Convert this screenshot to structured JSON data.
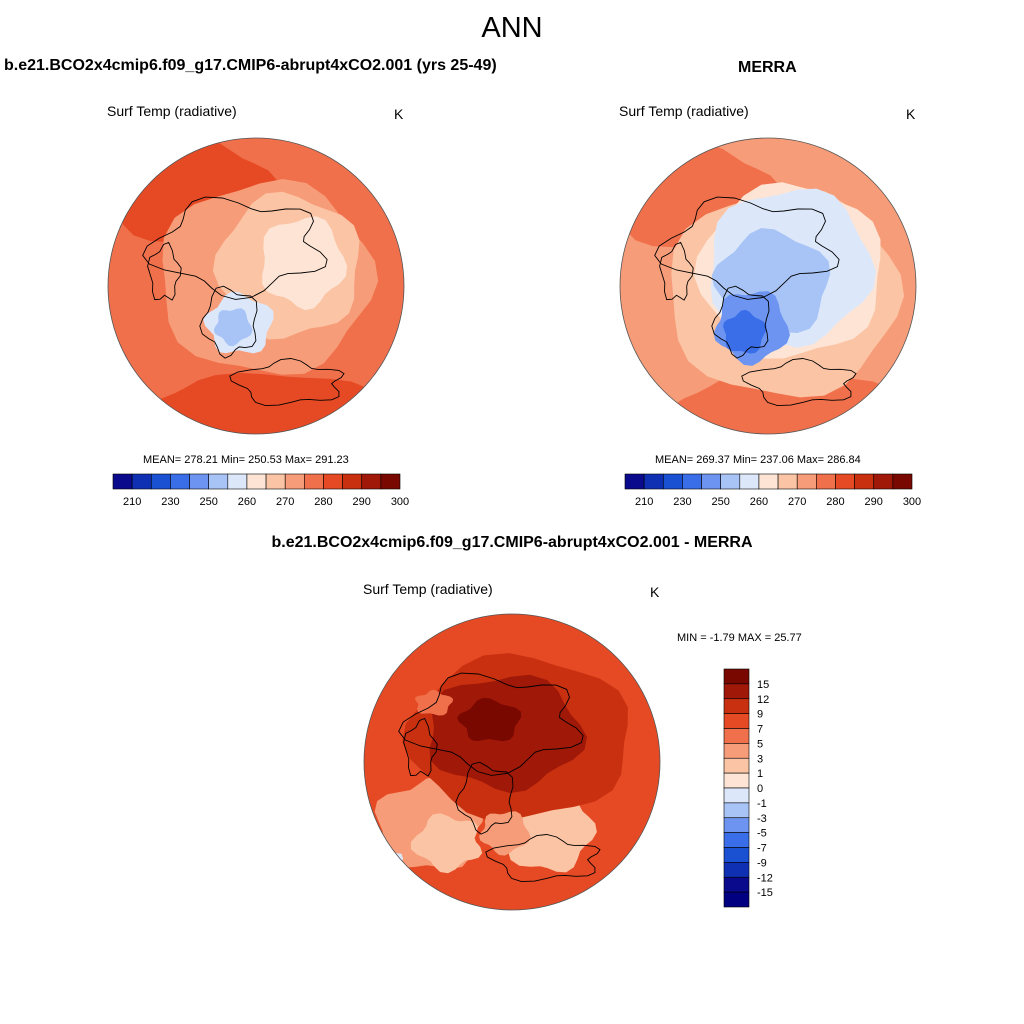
{
  "figure": {
    "main_title": "ANN",
    "panel_titles": {
      "model": "b.e21.BCO2x4cmip6.f09_g17.CMIP6-abrupt4xCO2.001 (yrs 25-49)",
      "obs": "MERRA",
      "diff": "b.e21.BCO2x4cmip6.f09_g17.CMIP6-abrupt4xCO2.001 - MERRA"
    }
  },
  "chart_data": [
    {
      "type": "heatmap",
      "projection": "polar-stereographic-north",
      "title": "b.e21.BCO2x4cmip6.f09_g17.CMIP6-abrupt4xCO2.001 (yrs 25-49)",
      "variable_label": "Surf Temp (radiative)",
      "units": "K",
      "mean": 278.21,
      "min": 250.53,
      "max": 291.23,
      "stats_text": "MEAN= 278.21  Min= 250.53  Max= 291.23",
      "colorbar_ticks": [
        "210",
        "230",
        "250",
        "260",
        "270",
        "280",
        "290",
        "300"
      ],
      "colorbar_colors": [
        "#0a0a8c",
        "#1030b4",
        "#1a50d2",
        "#3a6ee8",
        "#6c94f0",
        "#a8c4f6",
        "#dce8fa",
        "#fde4d4",
        "#fbc4a4",
        "#f79c78",
        "#f0704c",
        "#e64a24",
        "#c83010",
        "#a01808",
        "#780800"
      ]
    },
    {
      "type": "heatmap",
      "projection": "polar-stereographic-north",
      "title": "MERRA",
      "variable_label": "Surf Temp (radiative)",
      "units": "K",
      "mean": 269.37,
      "min": 237.06,
      "max": 286.84,
      "stats_text": "MEAN= 269.37  Min= 237.06  Max= 286.84",
      "colorbar_ticks": [
        "210",
        "230",
        "250",
        "260",
        "270",
        "280",
        "290",
        "300"
      ],
      "colorbar_colors": [
        "#0a0a8c",
        "#1030b4",
        "#1a50d2",
        "#3a6ee8",
        "#6c94f0",
        "#a8c4f6",
        "#dce8fa",
        "#fde4d4",
        "#fbc4a4",
        "#f79c78",
        "#f0704c",
        "#e64a24",
        "#c83010",
        "#a01808",
        "#780800"
      ]
    },
    {
      "type": "heatmap",
      "projection": "polar-stereographic-north",
      "title": "b.e21.BCO2x4cmip6.f09_g17.CMIP6-abrupt4xCO2.001 - MERRA",
      "variable_label": "Surf Temp (radiative)",
      "units": "K",
      "min": -1.79,
      "max": 25.77,
      "stats_text": "MIN =  -1.79 MAX =  25.77",
      "colorbar_ticks": [
        "15",
        "12",
        "9",
        "7",
        "5",
        "3",
        "1",
        "0",
        "-1",
        "-3",
        "-5",
        "-7",
        "-9",
        "-12",
        "-15"
      ],
      "colorbar_colors": [
        "#780800",
        "#a01808",
        "#c83010",
        "#e64a24",
        "#f0704c",
        "#f79c78",
        "#fbc4a4",
        "#fde4d4",
        "#dce8fa",
        "#a8c4f6",
        "#6c94f0",
        "#3a6ee8",
        "#1a50d2",
        "#1030b4",
        "#0a0a8c",
        "#000080"
      ]
    }
  ]
}
